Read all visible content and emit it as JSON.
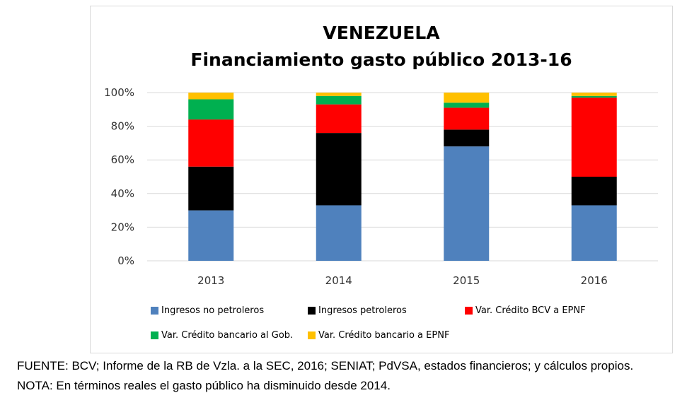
{
  "chart_data": {
    "type": "bar",
    "stacked": true,
    "title": "VENEZUELA",
    "subtitle": "Financiamiento gasto público 2013-16",
    "categories": [
      "2013",
      "2014",
      "2015",
      "2016"
    ],
    "ylim": [
      0,
      100
    ],
    "yticks": [
      "0%",
      "20%",
      "40%",
      "60%",
      "80%",
      "100%"
    ],
    "yticks_values": [
      0,
      20,
      40,
      60,
      80,
      100
    ],
    "grid": true,
    "legend_position": "bottom",
    "series": [
      {
        "name": "Ingresos no petroleros",
        "color": "#4f81bd",
        "values": [
          30,
          33,
          68,
          33
        ]
      },
      {
        "name": "Ingresos petroleros",
        "color": "#000000",
        "values": [
          26,
          43,
          10,
          17
        ]
      },
      {
        "name": "Var. Crédito BCV a EPNF",
        "color": "#ff0000",
        "values": [
          28,
          17,
          13,
          47
        ]
      },
      {
        "name": "Var. Crédito bancario al Gob.",
        "color": "#00b050",
        "values": [
          12,
          5,
          3,
          1
        ]
      },
      {
        "name": "Var. Crédito bancario a EPNF",
        "color": "#ffc000",
        "values": [
          4,
          2,
          6,
          2
        ]
      }
    ]
  },
  "footnotes": {
    "source": "FUENTE: BCV; Informe de la RB de Vzla. a la SEC, 2016; SENIAT; PdVSA, estados financieros; y cálculos propios.",
    "note": "NOTA: En términos reales el gasto público ha disminuido desde 2014."
  }
}
